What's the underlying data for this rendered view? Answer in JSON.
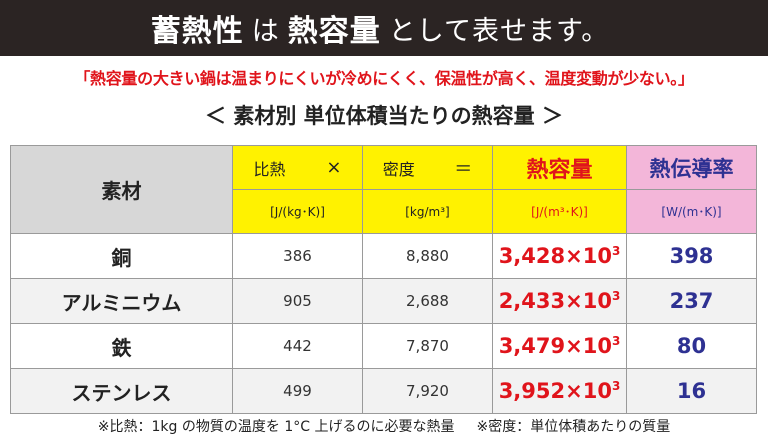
{
  "banner": {
    "term1": "蓄熱性",
    "joiner": "は",
    "term2": "熱容量",
    "tail": "として表せます。"
  },
  "subline": "「熱容量の大きい鍋は温まりにくいが冷めにくく、保温性が高く、温度変動が少ない。」",
  "heading": "＜ 素材別 単位体積当たりの熱容量 ＞",
  "table": {
    "col_material": "素材",
    "hdr": {
      "specific_heat": "比熱",
      "times": "×",
      "density": "密度",
      "equals": "＝",
      "heat_capacity": "熱容量",
      "conductivity": "熱伝導率"
    },
    "units": {
      "specific_heat": "[J/(kg･K)]",
      "density": "[kg/m³]",
      "heat_capacity": "[J/(m³･K)]",
      "conductivity": "[W/(m･K)]"
    },
    "rows": [
      {
        "name": "銅",
        "specific_heat": "386",
        "density": "8,880",
        "heat_capacity": "3,428×10",
        "exp": "3",
        "conductivity": "398"
      },
      {
        "name": "アルミニウム",
        "specific_heat": "905",
        "density": "2,688",
        "heat_capacity": "2,433×10",
        "exp": "3",
        "conductivity": "237"
      },
      {
        "name": "鉄",
        "specific_heat": "442",
        "density": "7,870",
        "heat_capacity": "3,479×10",
        "exp": "3",
        "conductivity": "80"
      },
      {
        "name": "ステンレス",
        "specific_heat": "499",
        "density": "7,920",
        "heat_capacity": "3,952×10",
        "exp": "3",
        "conductivity": "16"
      }
    ]
  },
  "footnote": {
    "note1": "※比熱：1kg の物質の温度を 1°C 上げるのに必要な熱量",
    "note2": "※密度：単位体積あたりの質量"
  },
  "colors": {
    "banner_bg": "#2b2423",
    "accent_red": "#e0141b",
    "accent_blue": "#2e3192",
    "header_yellow": "#fff200",
    "header_pink": "#f3b6d9",
    "header_gray": "#d7d7d7"
  }
}
